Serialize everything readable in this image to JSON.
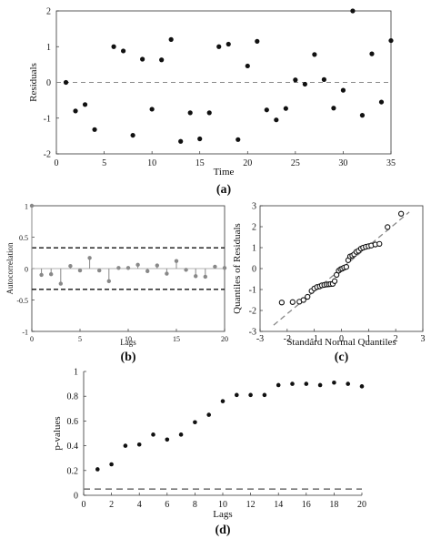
{
  "chart_data": [
    {
      "id": "a",
      "type": "scatter",
      "panel_label": "(a)",
      "xlabel": "Time",
      "ylabel": "Residuals",
      "xlim": [
        0,
        35
      ],
      "ylim": [
        -2,
        2
      ],
      "xticks": [
        0,
        5,
        10,
        15,
        20,
        25,
        30,
        35
      ],
      "yticks": [
        -2,
        -1,
        0,
        1,
        2
      ],
      "reference_line": {
        "y": 0,
        "style": "dashed"
      },
      "series": [
        {
          "x": [
            1,
            2,
            3,
            4,
            5,
            6,
            7,
            8,
            9,
            10,
            11,
            12,
            13,
            14,
            15,
            16,
            17,
            18,
            19,
            20,
            21,
            22,
            23,
            24,
            25,
            26,
            27,
            28,
            29,
            30,
            31,
            32,
            33,
            34,
            35
          ],
          "values": [
            0.0,
            -0.8,
            -0.62,
            -1.32,
            0,
            1.0,
            0.88,
            -1.48,
            0.65,
            -0.75,
            0.63,
            1.2,
            -1.65,
            -0.85,
            -1.58,
            -0.85,
            1.0,
            1.07,
            -1.6,
            0.46,
            1.15,
            -0.77,
            -1.05,
            -0.73,
            0.07,
            -0.05,
            0.78,
            0.08,
            -0.72,
            -0.22,
            2.0,
            -0.92,
            0.8,
            -0.55,
            1.17
          ],
          "present": [
            1,
            1,
            1,
            1,
            0,
            1,
            1,
            1,
            1,
            1,
            1,
            1,
            1,
            1,
            1,
            1,
            1,
            1,
            1,
            1,
            1,
            1,
            1,
            1,
            1,
            1,
            1,
            1,
            1,
            1,
            1,
            1,
            1,
            1,
            1
          ]
        }
      ]
    },
    {
      "id": "b",
      "type": "stem",
      "panel_label": "(b)",
      "xlabel": "Lags",
      "ylabel": "Autocorrelation",
      "xlim": [
        0,
        20
      ],
      "ylim": [
        -1,
        1
      ],
      "xticks": [
        0,
        5,
        10,
        15,
        20
      ],
      "yticks": [
        -1,
        -0.5,
        0,
        0.5,
        1
      ],
      "confidence_bounds": [
        0.33,
        -0.33
      ],
      "series": [
        {
          "x": [
            0,
            1,
            2,
            3,
            4,
            5,
            6,
            7,
            8,
            9,
            10,
            11,
            12,
            13,
            14,
            15,
            16,
            17,
            18,
            19,
            20
          ],
          "values": [
            1.0,
            -0.1,
            -0.09,
            -0.24,
            0.04,
            -0.03,
            0.17,
            -0.03,
            -0.2,
            0.01,
            0.01,
            0.06,
            -0.04,
            0.05,
            -0.08,
            0.12,
            -0.02,
            -0.12,
            -0.13,
            0.03,
            0.01
          ]
        }
      ]
    },
    {
      "id": "c",
      "type": "scatter",
      "panel_label": "(c)",
      "xlabel": "Standard Normal Quantiles",
      "ylabel": "Quantiles of Residuals",
      "xlim": [
        -3,
        3
      ],
      "ylim": [
        -3,
        3
      ],
      "xticks": [
        -3,
        -2,
        -1,
        0,
        1,
        2,
        3
      ],
      "yticks": [
        -3,
        -2,
        -1,
        0,
        1,
        2,
        3
      ],
      "reference_line": {
        "from": [
          -2.5,
          -2.7
        ],
        "to": [
          2.5,
          2.7
        ],
        "style": "dashed"
      },
      "series": [
        {
          "x": [
            -2.2,
            -1.8,
            -1.55,
            -1.4,
            -1.25,
            -1.1,
            -1.0,
            -0.9,
            -0.8,
            -0.72,
            -0.63,
            -0.55,
            -0.47,
            -0.4,
            -0.32,
            -0.25,
            -0.18,
            -0.1,
            -0.03,
            0.03,
            0.1,
            0.18,
            0.25,
            0.32,
            0.4,
            0.47,
            0.55,
            0.63,
            0.72,
            0.8,
            0.9,
            1.0,
            1.1,
            1.25,
            1.4,
            1.7,
            2.2
          ],
          "values": [
            -1.62,
            -1.6,
            -1.58,
            -1.5,
            -1.35,
            -1.07,
            -0.95,
            -0.88,
            -0.85,
            -0.8,
            -0.78,
            -0.76,
            -0.75,
            -0.74,
            -0.73,
            -0.6,
            -0.3,
            -0.1,
            -0.03,
            0.0,
            0.05,
            0.08,
            0.4,
            0.58,
            0.62,
            0.68,
            0.8,
            0.85,
            0.95,
            1.0,
            1.04,
            1.07,
            1.1,
            1.15,
            1.18,
            1.98,
            2.62
          ]
        }
      ]
    },
    {
      "id": "d",
      "type": "scatter",
      "panel_label": "(d)",
      "xlabel": "Lags",
      "ylabel": "p-values",
      "xlim": [
        0,
        20
      ],
      "ylim": [
        0,
        1
      ],
      "xticks": [
        0,
        2,
        4,
        6,
        8,
        10,
        12,
        14,
        16,
        18,
        20
      ],
      "yticks": [
        0,
        0.2,
        0.4,
        0.6,
        0.8,
        1
      ],
      "reference_line": {
        "y": 0.05,
        "style": "dashed"
      },
      "series": [
        {
          "x": [
            1,
            2,
            3,
            4,
            5,
            6,
            7,
            8,
            9,
            10,
            11,
            12,
            13,
            14,
            15,
            16,
            17,
            18,
            19,
            20
          ],
          "values": [
            0.21,
            0.25,
            0.4,
            0.41,
            0.49,
            0.45,
            0.49,
            0.59,
            0.65,
            0.76,
            0.81,
            0.81,
            0.81,
            0.89,
            0.9,
            0.9,
            0.89,
            0.91,
            0.9,
            0.88
          ]
        }
      ]
    }
  ]
}
